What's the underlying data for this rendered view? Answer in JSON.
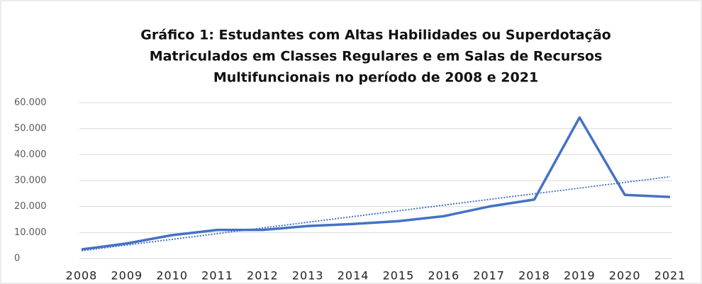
{
  "chart_data": {
    "type": "line",
    "title": [
      "Gráfico 1: Estudantes com Altas Habilidades ou Superdotação",
      "Matriculados em Classes Regulares e em Salas de Recursos",
      "Multifuncionais no período de 2008 e 2021"
    ],
    "x": [
      2008,
      2009,
      2010,
      2011,
      2012,
      2013,
      2014,
      2015,
      2016,
      2017,
      2018,
      2019,
      2020,
      2021
    ],
    "xticks": [
      2008,
      2009,
      2010,
      2011,
      2012,
      2013,
      2014,
      2015,
      2016,
      2017,
      2018,
      2019,
      2020,
      2021
    ],
    "xlim": [
      2008,
      2021
    ],
    "series": [
      {
        "color": "#4472c4",
        "values": [
          3500,
          5800,
          9000,
          11000,
          11000,
          12500,
          13300,
          14400,
          16300,
          20000,
          22700,
          54300,
          24500,
          23700
        ]
      }
    ],
    "trendline": {
      "x": [
        2008,
        2021
      ],
      "values": [
        3000,
        31500
      ],
      "color": "#4472c4",
      "style": "dotted"
    },
    "ylim": [
      0,
      60000
    ],
    "yticks": [
      0,
      {
        "value": 10000,
        "label": "10.000"
      },
      {
        "value": 20000,
        "label": "20.000"
      },
      {
        "value": 30000,
        "label": "30.000"
      },
      {
        "value": 40000,
        "label": "40.000"
      },
      {
        "value": 50000,
        "label": "50.000"
      },
      {
        "value": 60000,
        "label": "60.000"
      }
    ],
    "grid": true
  }
}
